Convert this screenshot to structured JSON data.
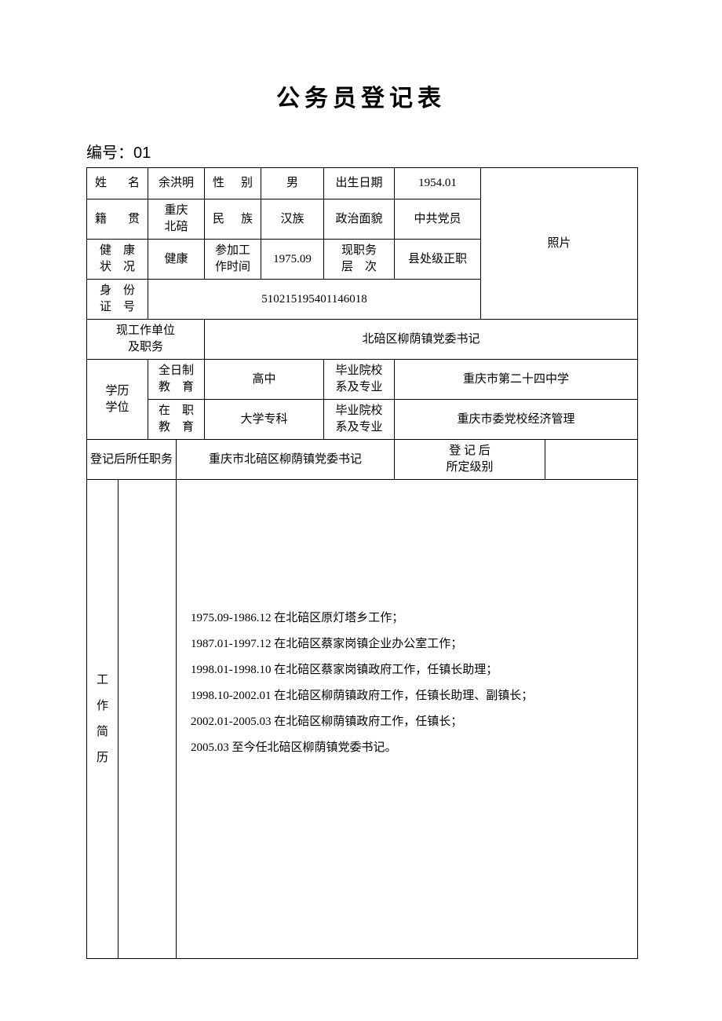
{
  "title": "公务员登记表",
  "serial_prefix": "编号：",
  "serial_no": "01",
  "labels": {
    "name": "姓　名",
    "gender": "性　别",
    "dob": "出生日期",
    "origin": "籍　贯",
    "ethnic": "民　族",
    "political": "政治面貌",
    "health": "健　康\n状　况",
    "work_start": "参加工\n作时间",
    "position_level": "现职务\n层　次",
    "id_no": "身　份\n证　号",
    "photo": "照片",
    "workplace": "现工作单位\n及职务",
    "edu": "学历\n学位",
    "full_time": "全日制\n教　育",
    "on_job": "在　职\n教　育",
    "grad_school": "毕业院校\n系及专业",
    "post_reg_position": "登记后所任职务",
    "post_reg_grade": "登 记 后\n所定级别",
    "resume": "工\n作\n简\n历"
  },
  "values": {
    "name": "余洪明",
    "gender": "男",
    "dob": "1954.01",
    "origin": "重庆\n北碚",
    "ethnic": "汉族",
    "political": "中共党员",
    "health": "健康",
    "work_start": "1975.09",
    "position_level": "县处级正职",
    "id_no": "510215195401146018",
    "workplace": "北碚区柳荫镇党委书记",
    "full_time_edu": "高中",
    "full_time_school": "重庆市第二十四中学",
    "on_job_edu": "大学专科",
    "on_job_school": "重庆市委党校经济管理",
    "post_reg_position": "重庆市北碚区柳荫镇党委书记",
    "post_reg_grade": ""
  },
  "resume_lines": [
    "1975.09-1986.12 在北碚区原灯塔乡工作；",
    "1987.01-1997.12 在北碚区蔡家岗镇企业办公室工作；",
    "1998.01-1998.10 在北碚区蔡家岗镇政府工作，任镇长助理；",
    "1998.10-2002.01 在北碚区柳荫镇政府工作，任镇长助理、副镇长；",
    "2002.01-2005.03 在北碚区柳荫镇政府工作，任镇长；",
    "2005.03 至今任北碚区柳荫镇党委书记。"
  ],
  "style": {
    "background": "#ffffff",
    "border_color": "#000000",
    "font_family": "SimSun"
  }
}
